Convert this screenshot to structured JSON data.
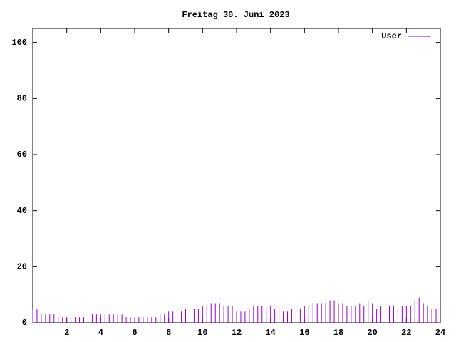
{
  "chart_data": {
    "type": "impulse",
    "title": "Freitag 30. Juni 2023",
    "x": [
      0,
      0.25,
      0.5,
      0.75,
      1,
      1.25,
      1.5,
      1.75,
      2,
      2.25,
      2.5,
      2.75,
      3,
      3.25,
      3.5,
      3.75,
      4,
      4.25,
      4.5,
      4.75,
      5,
      5.25,
      5.5,
      5.75,
      6,
      6.25,
      6.5,
      6.75,
      7,
      7.25,
      7.5,
      7.75,
      8,
      8.25,
      8.5,
      8.75,
      9,
      9.25,
      9.5,
      9.75,
      10,
      10.25,
      10.5,
      10.75,
      11,
      11.25,
      11.5,
      11.75,
      12,
      12.25,
      12.5,
      12.75,
      13,
      13.25,
      13.5,
      13.75,
      14,
      14.25,
      14.5,
      14.75,
      15,
      15.25,
      15.5,
      15.75,
      16,
      16.25,
      16.5,
      16.75,
      17,
      17.25,
      17.5,
      17.75,
      18,
      18.25,
      18.5,
      18.75,
      19,
      19.25,
      19.5,
      19.75,
      20,
      20.25,
      20.5,
      20.75,
      21,
      21.25,
      21.5,
      21.75,
      22,
      22.25,
      22.5,
      22.75,
      23,
      23.25,
      23.5,
      23.75
    ],
    "series": [
      {
        "name": "User",
        "color": "#9400d3",
        "values": [
          5,
          5,
          3,
          3,
          3,
          3,
          2,
          2,
          2,
          2,
          2,
          2,
          2,
          3,
          3,
          3,
          3,
          3,
          3,
          3,
          3,
          3,
          2,
          2,
          2,
          2,
          2,
          2,
          2,
          2,
          3,
          3,
          4,
          4,
          5,
          4,
          5,
          5,
          5,
          5,
          6,
          6,
          7,
          7,
          7,
          6,
          6,
          6,
          4,
          4,
          4,
          5,
          6,
          6,
          6,
          5,
          6,
          5,
          5,
          4,
          4,
          5,
          3,
          5,
          6,
          6,
          7,
          7,
          7,
          7,
          8,
          8,
          7,
          7,
          6,
          6,
          6,
          7,
          6,
          8,
          7,
          5,
          6,
          7,
          6,
          6,
          6,
          6,
          6,
          6,
          8,
          9,
          7,
          6,
          5,
          5
        ]
      }
    ],
    "xlim": [
      0,
      24
    ],
    "xticks": [
      2,
      4,
      6,
      8,
      10,
      12,
      14,
      16,
      18,
      20,
      22,
      24
    ],
    "ylim": [
      0,
      105
    ],
    "yticks": [
      0,
      20,
      40,
      60,
      80,
      100
    ],
    "legend": "upper right"
  }
}
